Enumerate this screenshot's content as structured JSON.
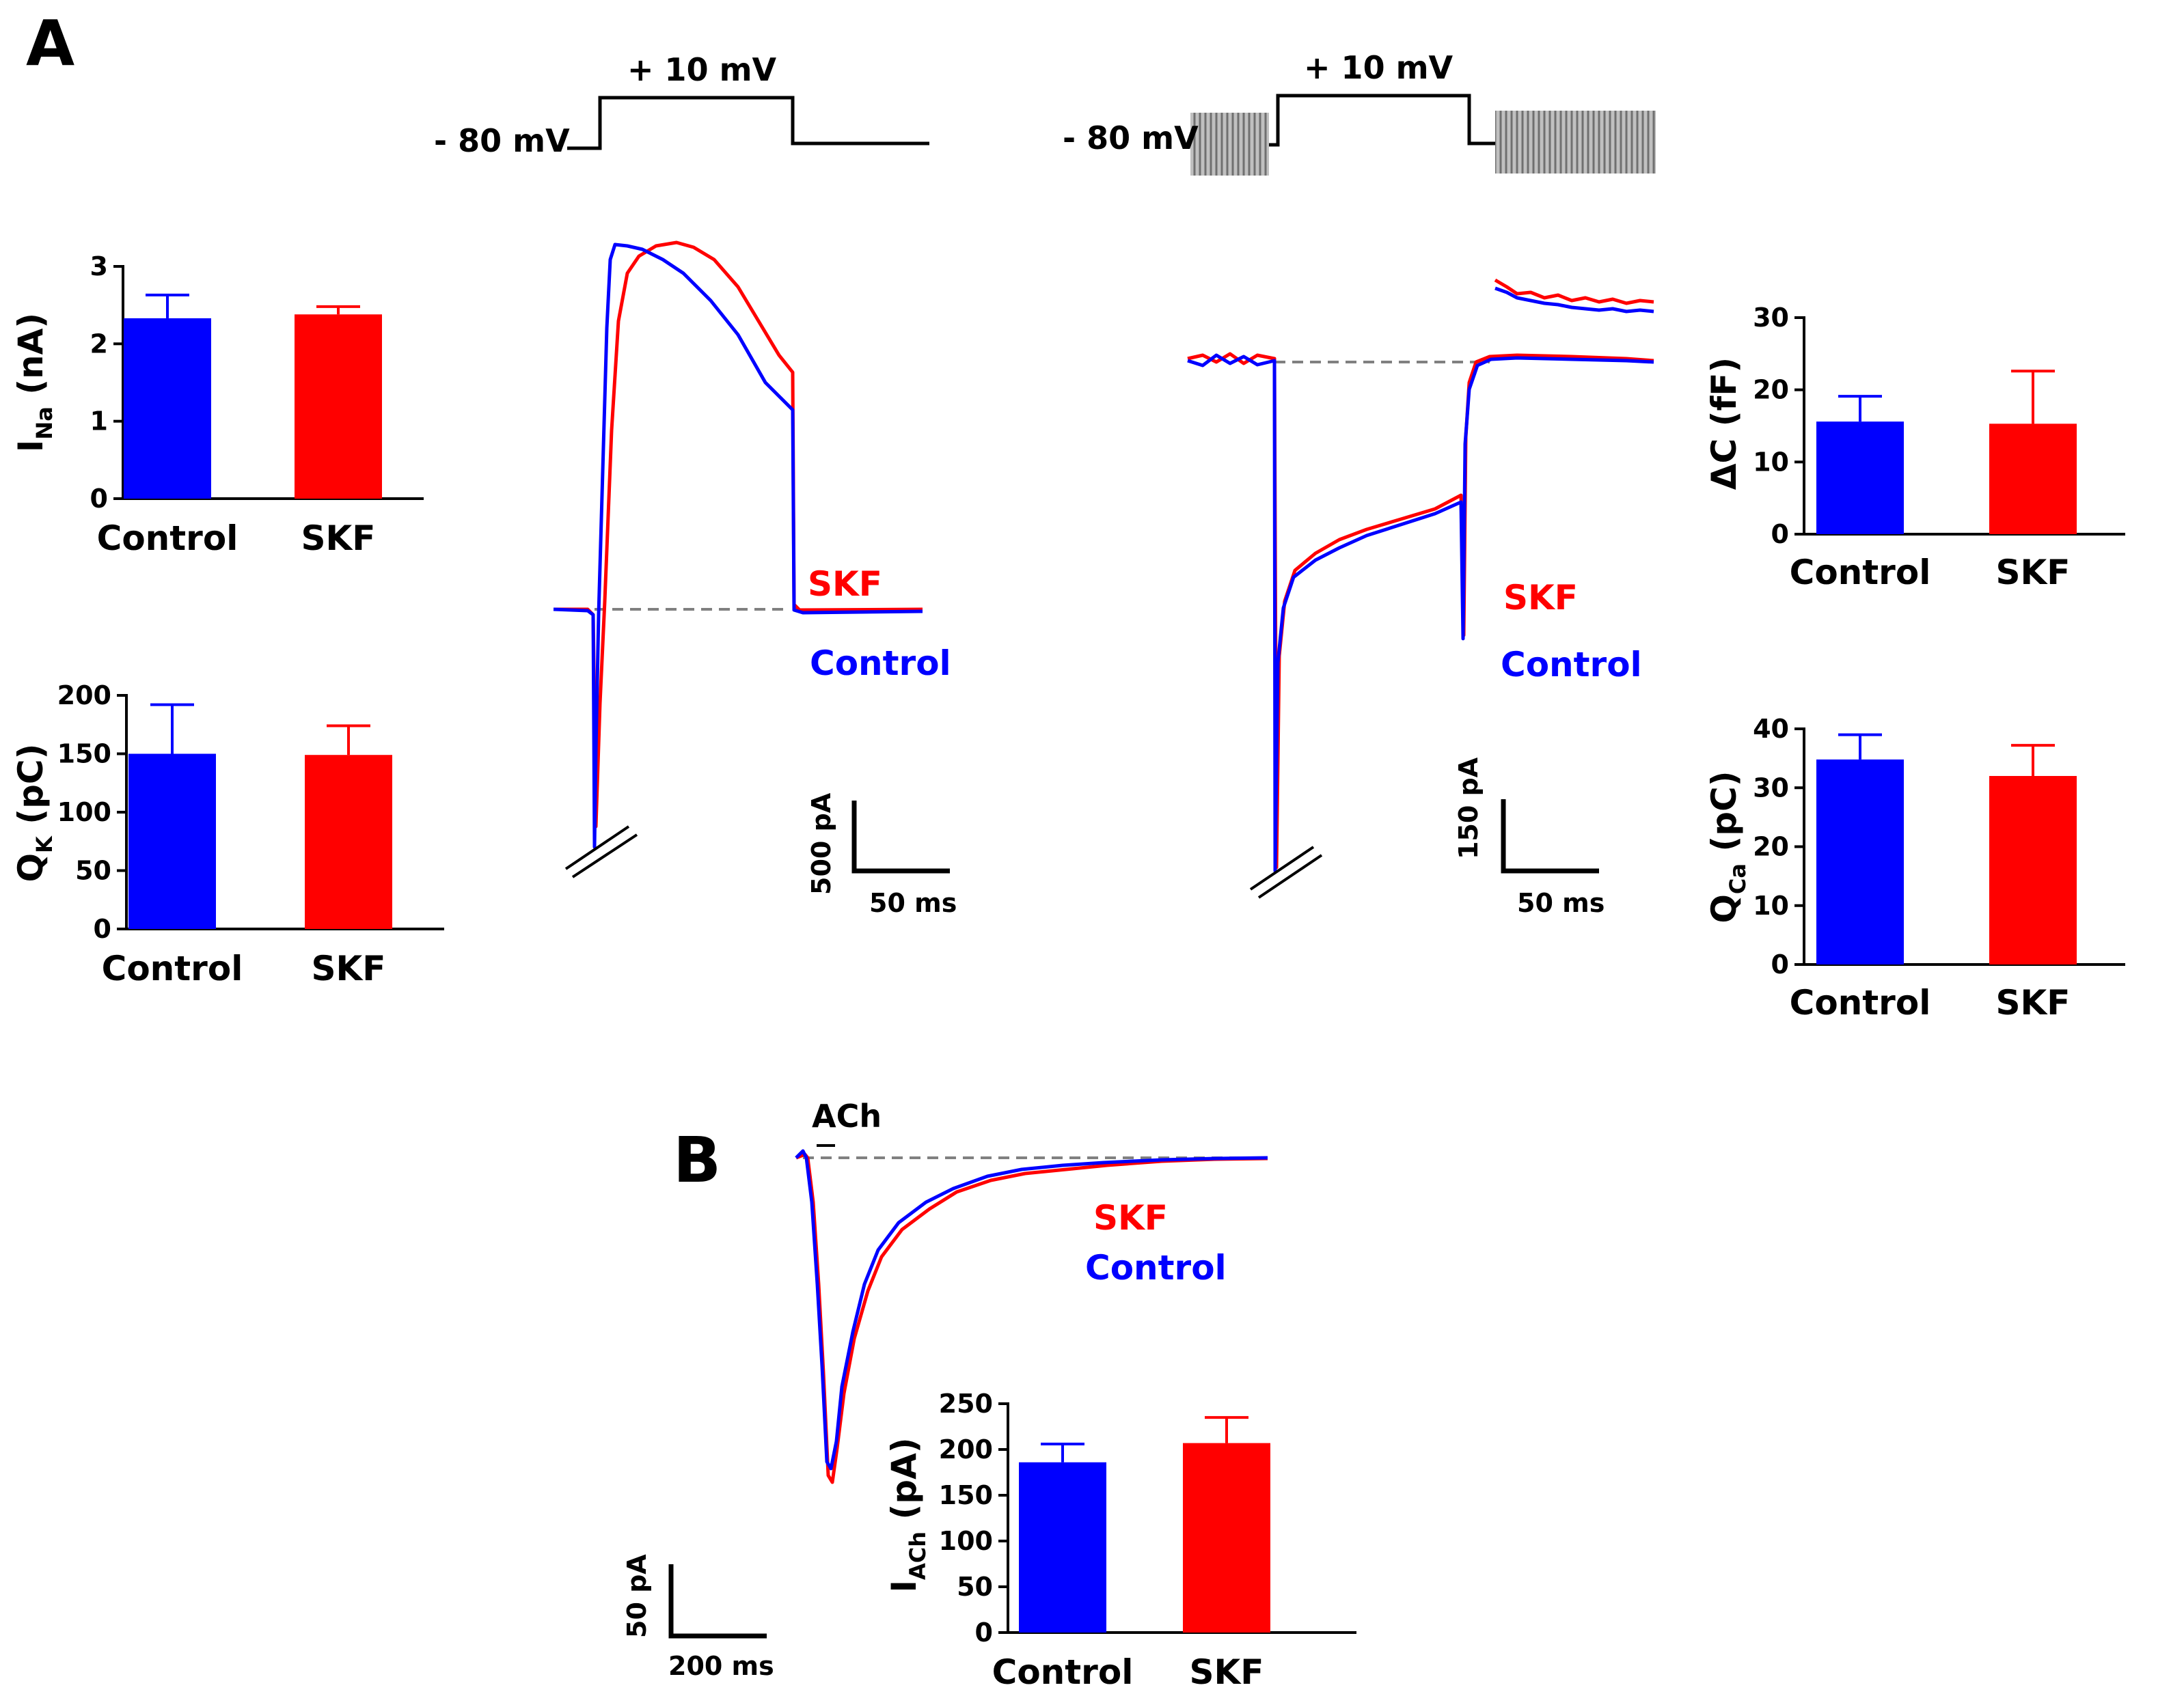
{
  "colors": {
    "control": "#0000ff",
    "skf": "#ff0000",
    "baseline": "#808080",
    "axis": "#000000"
  },
  "panels": {
    "a": {
      "letter": "A"
    },
    "b": {
      "letter": "B"
    }
  },
  "protocols": {
    "na": {
      "holding": "- 80 mV",
      "step": "+ 10 mV"
    },
    "ca": {
      "holding": "- 80 mV",
      "step": "+ 10 mV"
    }
  },
  "traces": {
    "na": {
      "skf_label": "SKF",
      "control_label": "Control",
      "scale_amp": "500 pA",
      "scale_time": "50 ms"
    },
    "ca": {
      "skf_label": "SKF",
      "control_label": "Control",
      "scale_amp": "150 pA",
      "scale_time": "50 ms"
    },
    "ach": {
      "stim_label": "ACh",
      "skf_label": "SKF",
      "control_label": "Control",
      "scale_amp": "50 pA",
      "scale_time": "200 ms"
    }
  },
  "chart_data": [
    {
      "id": "ina",
      "type": "bar",
      "ylabel_main": "I",
      "ylabel_sub": "Na",
      "ylabel_unit": " (nA)",
      "ylim": [
        0,
        3
      ],
      "yticks": [
        "0",
        "1",
        "2",
        "3"
      ],
      "categories": [
        "Control",
        "SKF"
      ],
      "values": [
        2.33,
        2.38
      ],
      "errors": [
        0.3,
        0.1
      ]
    },
    {
      "id": "qk",
      "type": "bar",
      "ylabel_main": "Q",
      "ylabel_sub": "K",
      "ylabel_unit": " (pC)",
      "ylim": [
        0,
        200
      ],
      "yticks": [
        "0",
        "50",
        "100",
        "150",
        "200"
      ],
      "categories": [
        "Control",
        "SKF"
      ],
      "values": [
        150,
        149
      ],
      "errors": [
        42,
        25
      ]
    },
    {
      "id": "dc",
      "type": "bar",
      "ylabel_main": "ΔC (fF)",
      "ylabel_sub": "",
      "ylabel_unit": "",
      "ylim": [
        0,
        30
      ],
      "yticks": [
        "0",
        "10",
        "20",
        "30"
      ],
      "categories": [
        "Control",
        "SKF"
      ],
      "values": [
        15.6,
        15.3
      ],
      "errors": [
        3.5,
        7.3
      ]
    },
    {
      "id": "qca",
      "type": "bar",
      "ylabel_main": "Q",
      "ylabel_sub": "Ca",
      "ylabel_unit": " (pC)",
      "ylim": [
        0,
        40
      ],
      "yticks": [
        "0",
        "10",
        "20",
        "30",
        "40"
      ],
      "categories": [
        "Control",
        "SKF"
      ],
      "values": [
        34.8,
        32.0
      ],
      "errors": [
        4.2,
        5.2
      ]
    },
    {
      "id": "iach",
      "type": "bar",
      "ylabel_main": "I",
      "ylabel_sub": "ACh",
      "ylabel_unit": " (pA)",
      "ylim": [
        0,
        250
      ],
      "yticks": [
        "0",
        "50",
        "100",
        "150",
        "200",
        "250"
      ],
      "categories": [
        "Control",
        "SKF"
      ],
      "values": [
        186,
        207
      ],
      "errors": [
        20,
        28
      ]
    }
  ]
}
